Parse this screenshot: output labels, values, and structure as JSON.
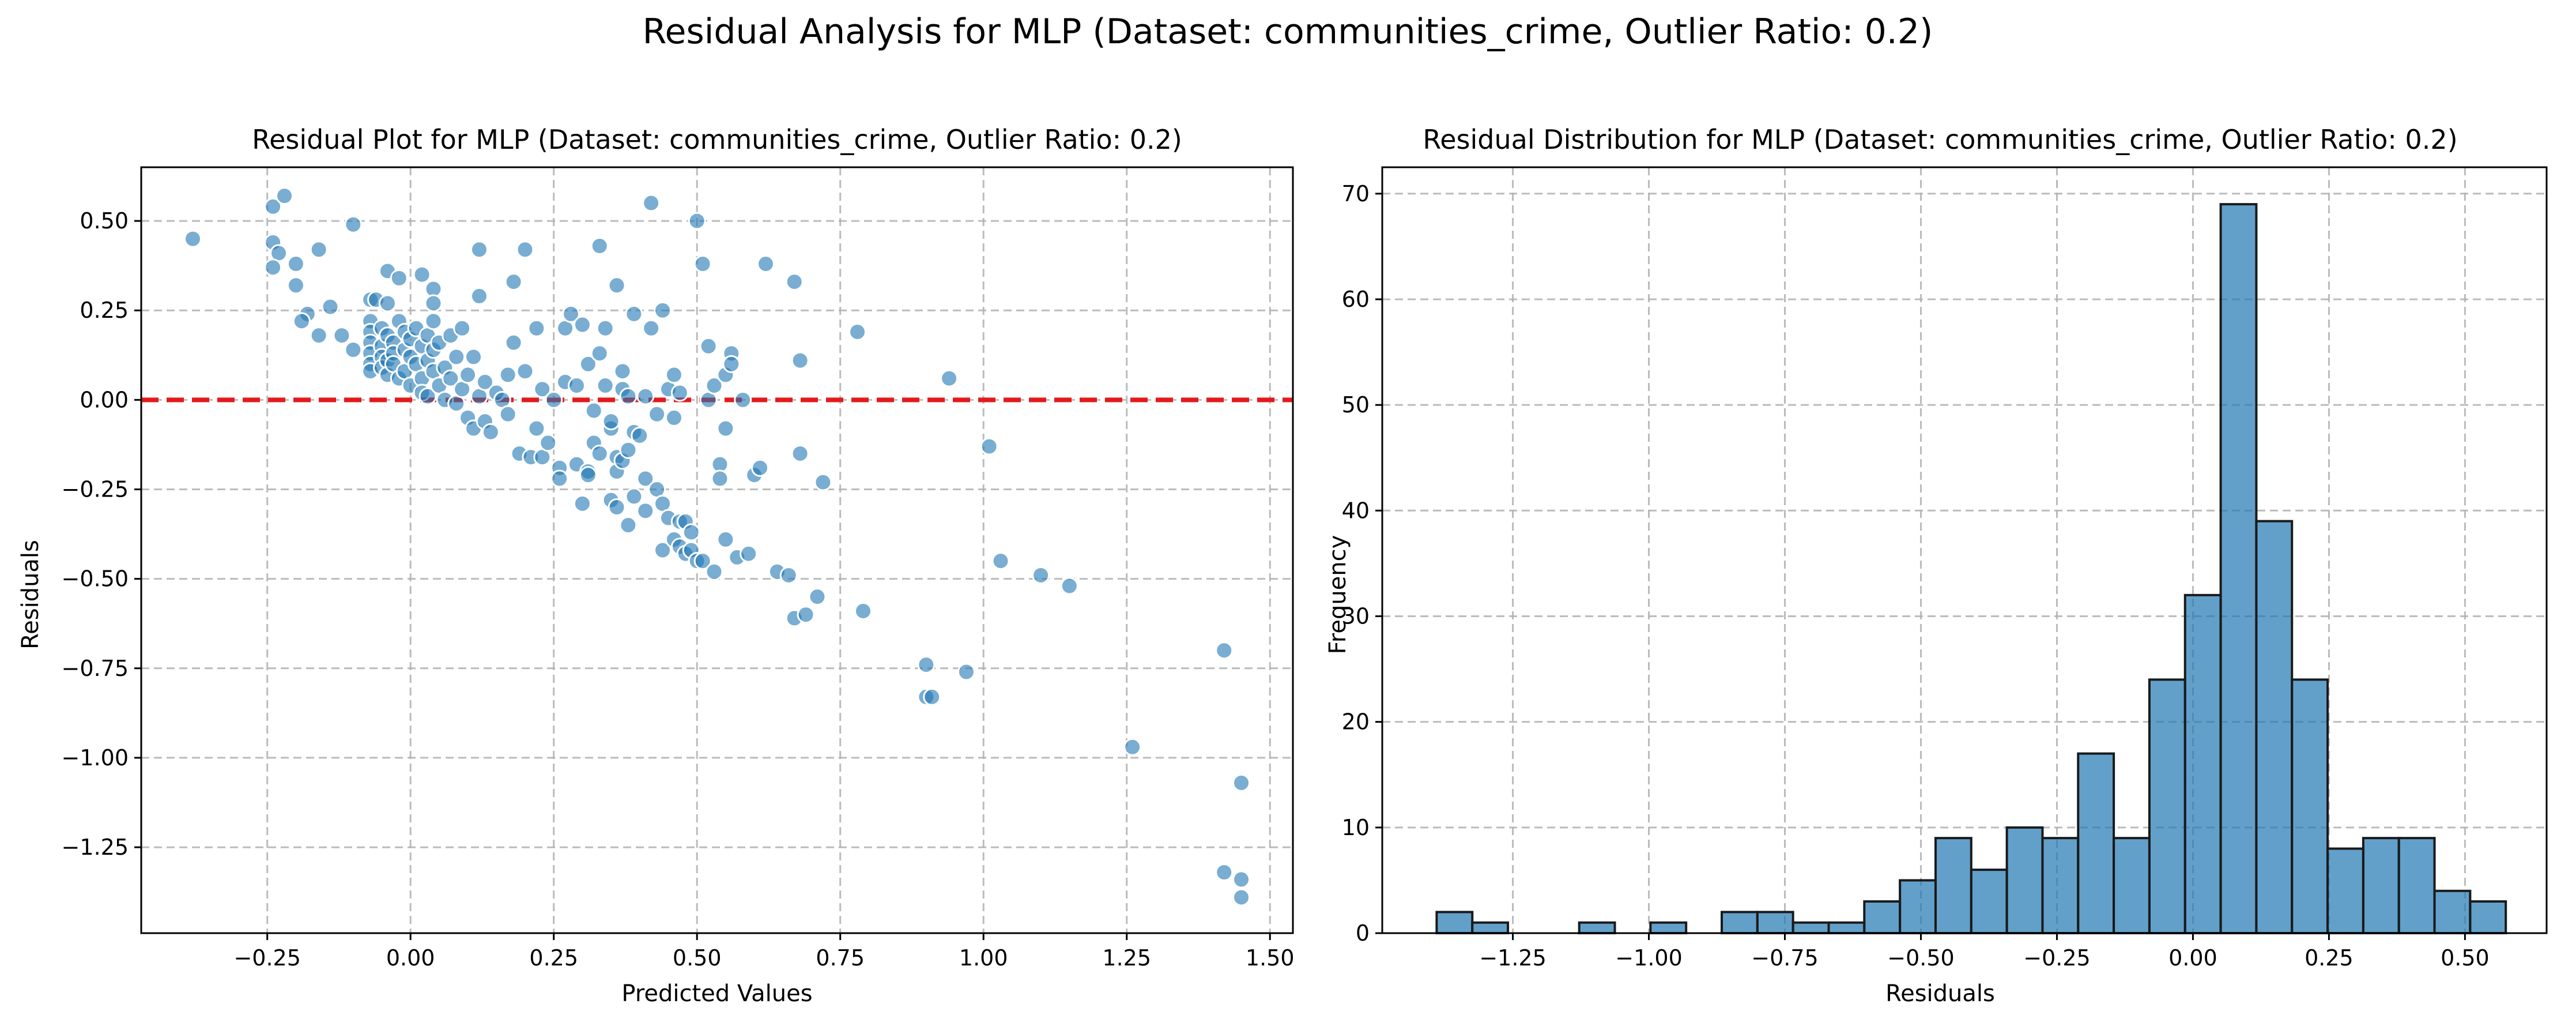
{
  "figure_title": "Residual Analysis for MLP (Dataset: communities_crime, Outlier Ratio: 0.2)",
  "chart_data": [
    {
      "type": "scatter",
      "title": "Residual Plot for MLP (Dataset: communities_crime, Outlier Ratio: 0.2)",
      "xlabel": "Predicted Values",
      "ylabel": "Residuals",
      "xlim": [
        -0.47,
        1.54
      ],
      "ylim": [
        -1.49,
        0.65
      ],
      "xticks": [
        -0.25,
        0.0,
        0.25,
        0.5,
        0.75,
        1.0,
        1.25,
        1.5
      ],
      "xtick_labels": [
        "−0.25",
        "0.00",
        "0.25",
        "0.50",
        "0.75",
        "1.00",
        "1.25",
        "1.50"
      ],
      "yticks": [
        0.5,
        0.25,
        0.0,
        -0.25,
        -0.5,
        -0.75,
        -1.0,
        -1.25
      ],
      "ytick_labels": [
        "0.50",
        "0.25",
        "0.00",
        "−0.25",
        "−0.50",
        "−0.75",
        "−1.00",
        "−1.25"
      ],
      "grid": true,
      "reference_line": {
        "y": 0.0,
        "color": "#e31a1c",
        "style": "dashed"
      },
      "point_color": "#1f77b4",
      "points": [
        [
          -0.38,
          0.45
        ],
        [
          -0.24,
          0.54
        ],
        [
          -0.22,
          0.57
        ],
        [
          -0.24,
          0.44
        ],
        [
          -0.23,
          0.41
        ],
        [
          -0.2,
          0.38
        ],
        [
          -0.24,
          0.37
        ],
        [
          -0.16,
          0.42
        ],
        [
          -0.1,
          0.49
        ],
        [
          -0.2,
          0.32
        ],
        [
          -0.18,
          0.24
        ],
        [
          -0.19,
          0.22
        ],
        [
          -0.16,
          0.18
        ],
        [
          -0.14,
          0.26
        ],
        [
          -0.12,
          0.18
        ],
        [
          -0.1,
          0.14
        ],
        [
          -0.07,
          0.28
        ],
        [
          -0.06,
          0.28
        ],
        [
          -0.04,
          0.36
        ],
        [
          -0.04,
          0.27
        ],
        [
          -0.02,
          0.34
        ],
        [
          0.02,
          0.35
        ],
        [
          0.04,
          0.31
        ],
        [
          0.04,
          0.27
        ],
        [
          -0.07,
          0.22
        ],
        [
          -0.07,
          0.19
        ],
        [
          -0.07,
          0.16
        ],
        [
          -0.07,
          0.13
        ],
        [
          -0.07,
          0.1
        ],
        [
          -0.07,
          0.08
        ],
        [
          -0.05,
          0.2
        ],
        [
          -0.05,
          0.15
        ],
        [
          -0.05,
          0.12
        ],
        [
          -0.05,
          0.09
        ],
        [
          -0.04,
          0.18
        ],
        [
          -0.04,
          0.11
        ],
        [
          -0.04,
          0.07
        ],
        [
          -0.03,
          0.16
        ],
        [
          -0.03,
          0.13
        ],
        [
          -0.03,
          0.1
        ],
        [
          -0.02,
          0.22
        ],
        [
          -0.02,
          0.06
        ],
        [
          -0.01,
          0.19
        ],
        [
          -0.01,
          0.14
        ],
        [
          -0.01,
          0.08
        ],
        [
          0.0,
          0.12
        ],
        [
          0.0,
          0.17
        ],
        [
          0.0,
          0.04
        ],
        [
          0.01,
          0.2
        ],
        [
          0.01,
          0.1
        ],
        [
          0.02,
          0.15
        ],
        [
          0.02,
          0.06
        ],
        [
          0.02,
          0.02
        ],
        [
          0.03,
          0.18
        ],
        [
          0.03,
          0.11
        ],
        [
          0.03,
          0.01
        ],
        [
          0.04,
          0.08
        ],
        [
          0.04,
          0.14
        ],
        [
          0.04,
          0.22
        ],
        [
          0.05,
          0.04
        ],
        [
          0.05,
          0.16
        ],
        [
          0.06,
          0.0
        ],
        [
          0.06,
          0.09
        ],
        [
          0.07,
          0.18
        ],
        [
          0.07,
          0.06
        ],
        [
          0.08,
          -0.01
        ],
        [
          0.08,
          0.12
        ],
        [
          0.09,
          0.03
        ],
        [
          0.09,
          0.2
        ],
        [
          0.1,
          -0.05
        ],
        [
          0.1,
          0.07
        ],
        [
          0.11,
          0.12
        ],
        [
          0.11,
          -0.08
        ],
        [
          0.12,
          0.01
        ],
        [
          0.12,
          0.29
        ],
        [
          0.12,
          0.42
        ],
        [
          0.13,
          0.05
        ],
        [
          0.13,
          -0.06
        ],
        [
          0.14,
          -0.09
        ],
        [
          0.15,
          0.02
        ],
        [
          0.16,
          0.0
        ],
        [
          0.17,
          -0.04
        ],
        [
          0.17,
          0.07
        ],
        [
          0.18,
          0.16
        ],
        [
          0.18,
          0.33
        ],
        [
          0.19,
          -0.15
        ],
        [
          0.2,
          0.08
        ],
        [
          0.2,
          0.42
        ],
        [
          0.21,
          -0.16
        ],
        [
          0.22,
          -0.08
        ],
        [
          0.22,
          0.2
        ],
        [
          0.23,
          -0.16
        ],
        [
          0.23,
          0.03
        ],
        [
          0.24,
          -0.12
        ],
        [
          0.25,
          0.0
        ],
        [
          0.26,
          -0.19
        ],
        [
          0.26,
          -0.22
        ],
        [
          0.27,
          0.05
        ],
        [
          0.27,
          0.2
        ],
        [
          0.28,
          0.24
        ],
        [
          0.29,
          0.04
        ],
        [
          0.29,
          -0.18
        ],
        [
          0.3,
          -0.29
        ],
        [
          0.3,
          0.21
        ],
        [
          0.31,
          0.1
        ],
        [
          0.31,
          -0.2
        ],
        [
          0.31,
          -0.21
        ],
        [
          0.32,
          -0.03
        ],
        [
          0.32,
          -0.12
        ],
        [
          0.33,
          -0.15
        ],
        [
          0.33,
          0.43
        ],
        [
          0.33,
          0.13
        ],
        [
          0.34,
          0.2
        ],
        [
          0.34,
          0.04
        ],
        [
          0.35,
          -0.08
        ],
        [
          0.35,
          -0.28
        ],
        [
          0.35,
          -0.06
        ],
        [
          0.36,
          -0.16
        ],
        [
          0.36,
          -0.2
        ],
        [
          0.36,
          0.32
        ],
        [
          0.36,
          -0.3
        ],
        [
          0.37,
          0.08
        ],
        [
          0.37,
          0.03
        ],
        [
          0.37,
          -0.17
        ],
        [
          0.38,
          -0.14
        ],
        [
          0.38,
          0.01
        ],
        [
          0.38,
          -0.35
        ],
        [
          0.39,
          0.24
        ],
        [
          0.39,
          -0.09
        ],
        [
          0.39,
          -0.27
        ],
        [
          0.4,
          -0.1
        ],
        [
          0.41,
          0.01
        ],
        [
          0.41,
          -0.22
        ],
        [
          0.41,
          -0.31
        ],
        [
          0.42,
          0.55
        ],
        [
          0.42,
          0.2
        ],
        [
          0.43,
          -0.25
        ],
        [
          0.43,
          -0.04
        ],
        [
          0.44,
          0.25
        ],
        [
          0.44,
          -0.29
        ],
        [
          0.44,
          -0.42
        ],
        [
          0.45,
          -0.33
        ],
        [
          0.45,
          0.03
        ],
        [
          0.46,
          -0.39
        ],
        [
          0.46,
          0.07
        ],
        [
          0.46,
          -0.05
        ],
        [
          0.47,
          0.02
        ],
        [
          0.47,
          -0.34
        ],
        [
          0.47,
          -0.41
        ],
        [
          0.48,
          -0.34
        ],
        [
          0.48,
          -0.43
        ],
        [
          0.49,
          -0.37
        ],
        [
          0.49,
          -0.42
        ],
        [
          0.5,
          0.5
        ],
        [
          0.5,
          -0.45
        ],
        [
          0.51,
          0.38
        ],
        [
          0.51,
          -0.45
        ],
        [
          0.52,
          0.15
        ],
        [
          0.52,
          0.0
        ],
        [
          0.53,
          -0.48
        ],
        [
          0.53,
          0.04
        ],
        [
          0.54,
          -0.18
        ],
        [
          0.54,
          -0.22
        ],
        [
          0.55,
          -0.08
        ],
        [
          0.55,
          0.07
        ],
        [
          0.55,
          -0.39
        ],
        [
          0.56,
          0.13
        ],
        [
          0.56,
          0.1
        ],
        [
          0.57,
          -0.44
        ],
        [
          0.58,
          0.0
        ],
        [
          0.59,
          -0.43
        ],
        [
          0.6,
          -0.21
        ],
        [
          0.61,
          -0.19
        ],
        [
          0.62,
          0.38
        ],
        [
          0.64,
          -0.48
        ],
        [
          0.66,
          -0.49
        ],
        [
          0.67,
          -0.61
        ],
        [
          0.67,
          0.33
        ],
        [
          0.68,
          0.11
        ],
        [
          0.68,
          -0.15
        ],
        [
          0.69,
          -0.6
        ],
        [
          0.71,
          -0.55
        ],
        [
          0.72,
          -0.23
        ],
        [
          0.78,
          0.19
        ],
        [
          0.79,
          -0.59
        ],
        [
          0.9,
          -0.74
        ],
        [
          0.9,
          -0.83
        ],
        [
          0.91,
          -0.83
        ],
        [
          0.94,
          0.06
        ],
        [
          0.97,
          -0.76
        ],
        [
          1.01,
          -0.13
        ],
        [
          1.03,
          -0.45
        ],
        [
          1.1,
          -0.49
        ],
        [
          1.15,
          -0.52
        ],
        [
          1.26,
          -0.97
        ],
        [
          1.42,
          -0.7
        ],
        [
          1.42,
          -1.32
        ],
        [
          1.45,
          -1.07
        ],
        [
          1.45,
          -1.34
        ],
        [
          1.45,
          -1.39
        ]
      ]
    },
    {
      "type": "bar",
      "title": "Residual Distribution for MLP (Dataset: communities_crime, Outlier Ratio: 0.2)",
      "xlabel": "Residuals",
      "ylabel": "Frequency",
      "xlim": [
        -1.49,
        0.65
      ],
      "ylim": [
        0,
        72.5
      ],
      "xticks": [
        -1.25,
        -1.0,
        -0.75,
        -0.5,
        -0.25,
        0.0,
        0.25,
        0.5
      ],
      "xtick_labels": [
        "−1.25",
        "−1.00",
        "−0.75",
        "−0.50",
        "−0.25",
        "0.00",
        "0.25",
        "0.50"
      ],
      "yticks": [
        0,
        10,
        20,
        30,
        40,
        50,
        60,
        70
      ],
      "ytick_labels": [
        "0",
        "10",
        "20",
        "30",
        "40",
        "50",
        "60",
        "70"
      ],
      "grid": true,
      "bar_color": "#1f77b4",
      "bin_start": -1.39,
      "bin_width": 0.0655,
      "values": [
        2,
        1,
        0,
        0,
        1,
        0,
        1,
        0,
        2,
        2,
        1,
        1,
        3,
        5,
        9,
        6,
        10,
        9,
        17,
        9,
        24,
        32,
        69,
        39,
        24,
        8,
        9,
        9,
        4,
        3
      ]
    }
  ]
}
